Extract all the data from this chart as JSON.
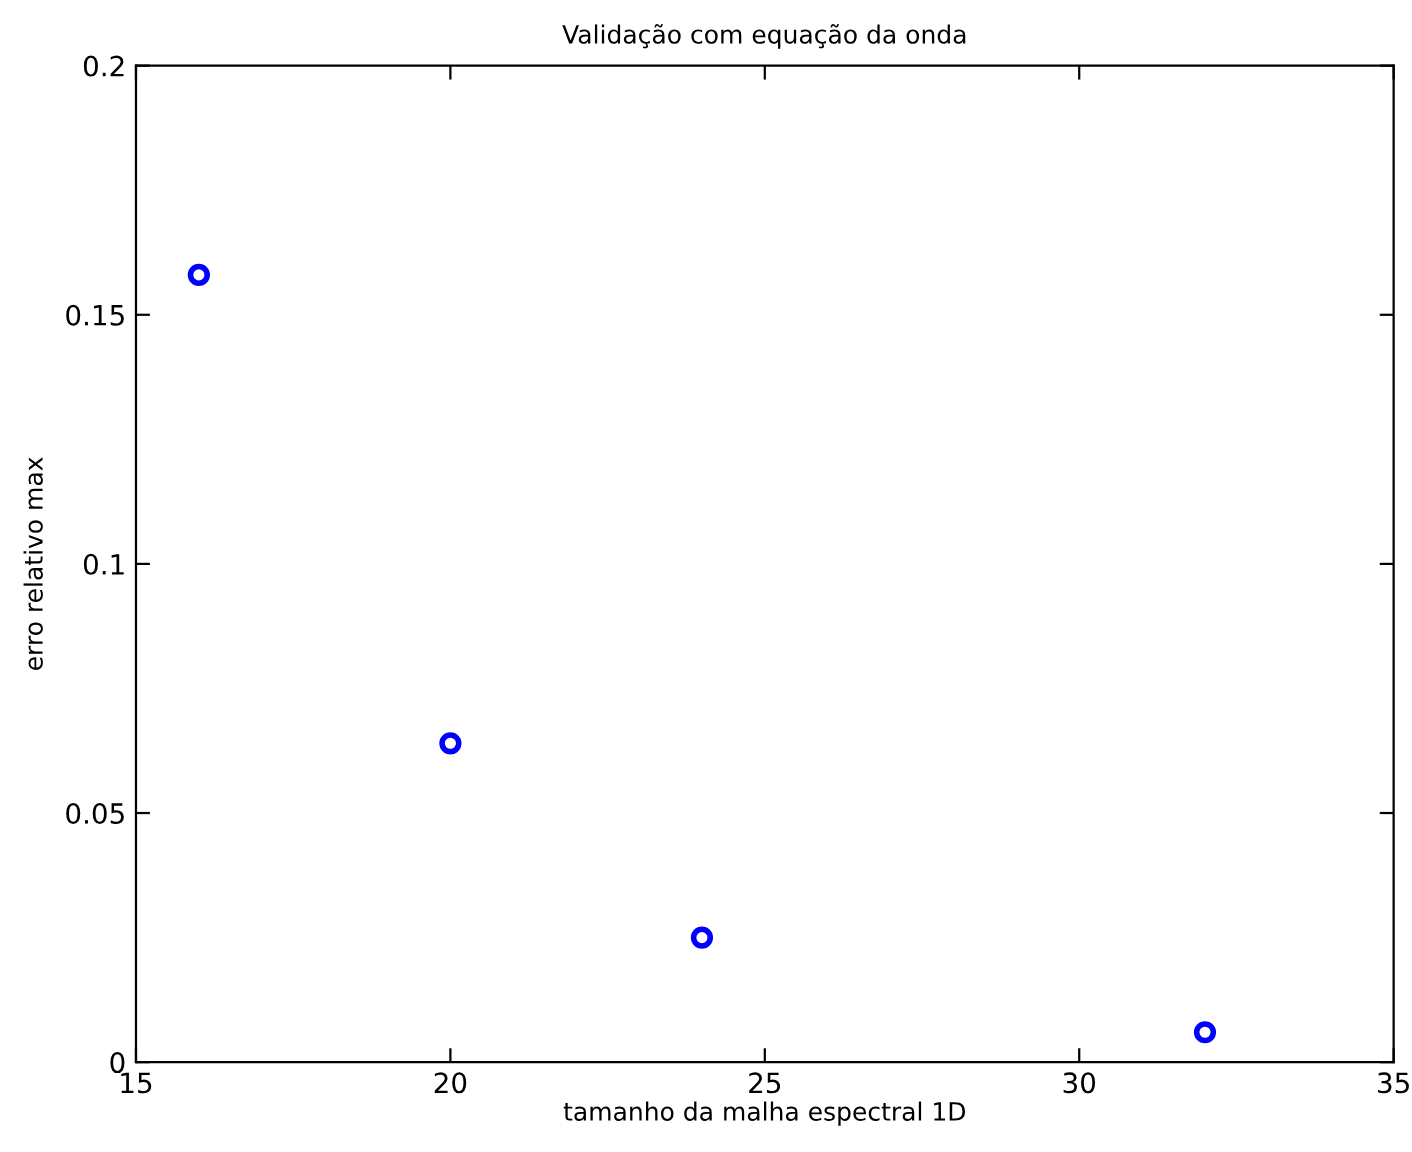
{
  "chart_data": {
    "type": "scatter",
    "title": "Validação com equação da onda",
    "xlabel": "tamanho da malha espectral 1D",
    "ylabel": "erro relativo max",
    "x": [
      16,
      20,
      24,
      32
    ],
    "series": [
      {
        "color": "#0000ff",
        "values": [
          0.158,
          0.064,
          0.025,
          0.006
        ]
      }
    ],
    "xlim": [
      15,
      35
    ],
    "xticks": [
      15,
      20,
      25,
      30,
      35
    ],
    "ylim": [
      0,
      0.2
    ],
    "yticks": [
      0,
      0.05,
      0.1,
      0.15,
      0.2
    ],
    "marker": "circle",
    "grid": false,
    "legend": false
  }
}
